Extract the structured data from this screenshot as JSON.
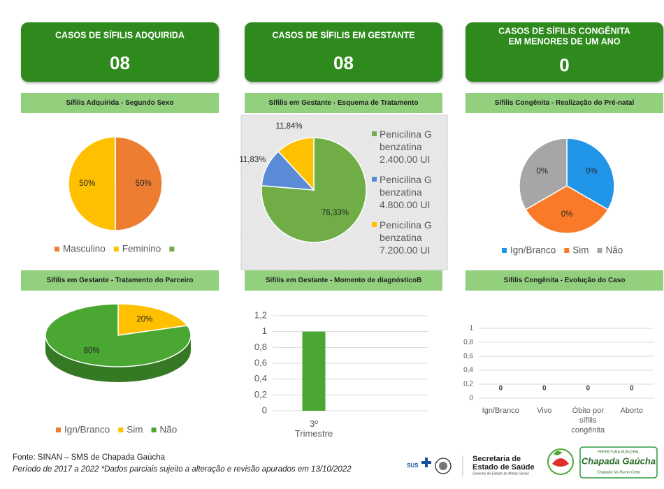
{
  "cards": [
    {
      "title_lines": [
        "CASOS DE SÍFILIS ADQUIRIDA"
      ],
      "value": "08"
    },
    {
      "title_lines": [
        "CASOS DE SÍFILIS EM GESTANTE"
      ],
      "value": "08"
    },
    {
      "title_lines": [
        "CASOS DE SÍFILIS CONGÊNITA",
        "EM MENORES DE UM ANO"
      ],
      "value": "0"
    }
  ],
  "chart_data": [
    {
      "type": "pie",
      "title": "Sífilis Adquirida - Segundo Sexo",
      "categories": [
        "Masculino",
        "Feminino",
        null
      ],
      "values": [
        50,
        50,
        0
      ],
      "value_labels": [
        "50%",
        "50%",
        null
      ],
      "colors": [
        "#ed7d31",
        "#ffc000",
        "#70ad47"
      ],
      "legend": "bottom"
    },
    {
      "type": "pie",
      "title": "Sífilis em Gestante - Esquema de Tratamento",
      "categories": [
        "Penicilina G benzatina 2.400.00 UI",
        "Penicilina G benzatina 4.800.00 UI",
        "Penicilina G benzatina 7.200.00 UI"
      ],
      "values": [
        76.33,
        11.83,
        11.84
      ],
      "value_labels": [
        "76,33%",
        "11,83%",
        "11,84%"
      ],
      "colors": [
        "#70ad47",
        "#5b8bd6",
        "#ffc000"
      ],
      "legend": "right"
    },
    {
      "type": "pie",
      "title": "Sífilis Congênita - Realização do Pré-natal",
      "categories": [
        "Ign/Branco",
        "Sim",
        "Não"
      ],
      "values": [
        0,
        0,
        0
      ],
      "value_labels": [
        "0%",
        "0%",
        "0%"
      ],
      "colors": [
        "#2196e8",
        "#fb7a2a",
        "#a6a6a6"
      ],
      "legend": "bottom"
    },
    {
      "type": "pie",
      "title": "Sífilis em Gestante - Tratamento do Parceiro",
      "3d": true,
      "categories": [
        "Ign/Branco",
        "Sim",
        "Não"
      ],
      "values": [
        0,
        20,
        80
      ],
      "value_labels": [
        null,
        "20%",
        "80%"
      ],
      "colors": [
        "#ed7d31",
        "#ffc000",
        "#4aa832"
      ],
      "legend": "bottom"
    },
    {
      "type": "bar",
      "title": "Sífilis em Gestante - Momento de diagnósticoB",
      "categories": [
        "3º Trimestre"
      ],
      "values": [
        1
      ],
      "color": "#4aa832",
      "ylim": [
        0,
        1.2
      ],
      "yticks": [
        0,
        {
          "value": 0.2,
          "label": "0,2"
        },
        {
          "value": 0.4,
          "label": "0,4"
        },
        {
          "value": 0.6,
          "label": "0,6"
        },
        {
          "value": 0.8,
          "label": "0,8"
        },
        1,
        {
          "value": 1.2,
          "label": "1,2"
        }
      ],
      "grid": true
    },
    {
      "type": "bar",
      "title": "Sífilis Congênita - Evolução do Caso",
      "categories": [
        "Ign/Branco",
        "Vivo",
        "Óbito por sífilis congênita",
        "Aborto"
      ],
      "values": [
        0,
        0,
        0,
        0
      ],
      "color": "#4aa832",
      "data_labels": true,
      "ylim": [
        0,
        1
      ],
      "yticks": [
        0,
        {
          "value": 0.2,
          "label": "0,2"
        },
        {
          "value": 0.4,
          "label": "0,4"
        },
        {
          "value": 0.6,
          "label": "0,6"
        },
        {
          "value": 0.8,
          "label": "0,8"
        },
        1
      ],
      "grid": true
    }
  ],
  "footer": {
    "source": "Fonte:  SINAN – SMS de Chapada Gaúcha",
    "period": "Período de 2017 a 2022 *Dados parciais sujeito a alteração e revisão apurados em 13/10/2022"
  },
  "logos": {
    "sus": "SUS",
    "secretaria_lines": [
      "Secretaria de",
      "Estado de Saúde"
    ],
    "governo": "Governo do Estado de Minas Gerais",
    "prefeitura": "PREFEITURA MUNICIPAL",
    "municipio": "Chapada Gaúcha",
    "slogan": "Chapada No Rumo Certo"
  }
}
